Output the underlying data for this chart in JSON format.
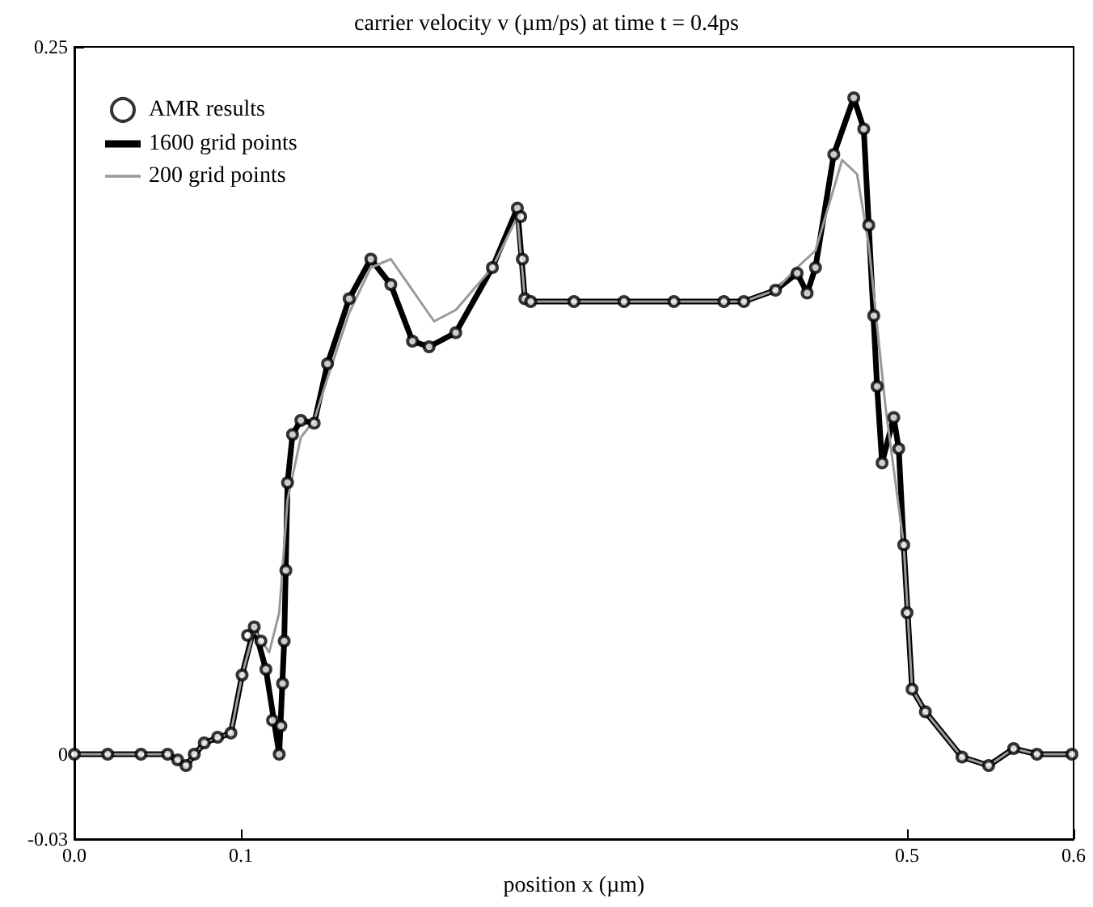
{
  "chart_data": {
    "type": "line",
    "title": "carrier velocity v (µm/ps) at time t = 0.4ps",
    "xlabel": "position x (µm)",
    "xlim": [
      0,
      0.6
    ],
    "xticks": [
      {
        "value": 0,
        "label": "0.0"
      },
      0.1,
      0.5,
      0.6
    ],
    "ylim": [
      -0.03,
      0.25
    ],
    "yticks": [
      -0.03,
      0,
      0.25
    ],
    "grid": false,
    "legend": "top left",
    "series": [
      {
        "name": "AMR results",
        "type": "scatter",
        "marker": "circle",
        "color": "#000000",
        "x": [
          0,
          0.02,
          0.04,
          0.056,
          0.062,
          0.067,
          0.072,
          0.078,
          0.086,
          0.094,
          0.1007,
          0.104,
          0.108,
          0.112,
          0.115,
          0.119,
          0.123,
          0.124,
          0.125,
          0.126,
          0.127,
          0.128,
          0.131,
          0.136,
          0.144,
          0.152,
          0.165,
          0.178,
          0.19,
          0.203,
          0.213,
          0.229,
          0.251,
          0.266,
          0.268,
          0.269,
          0.2705,
          0.274,
          0.3,
          0.33,
          0.36,
          0.39,
          0.402,
          0.421,
          0.434,
          0.44,
          0.445,
          0.456,
          0.468,
          0.474,
          0.477,
          0.48,
          0.482,
          0.485,
          0.492,
          0.495,
          0.498,
          0.5,
          0.503,
          0.511,
          0.533,
          0.549,
          0.564,
          0.578,
          0.599
        ],
        "values": [
          0,
          0,
          0,
          0,
          -0.002,
          -0.004,
          0,
          0.004,
          0.006,
          0.0075,
          0.028,
          0.042,
          0.045,
          0.04,
          0.03,
          0.012,
          0,
          0.01,
          0.025,
          0.04,
          0.065,
          0.096,
          0.113,
          0.118,
          0.117,
          0.138,
          0.161,
          0.175,
          0.166,
          0.146,
          0.144,
          0.149,
          0.172,
          0.193,
          0.19,
          0.175,
          0.161,
          0.16,
          0.16,
          0.16,
          0.16,
          0.16,
          0.16,
          0.164,
          0.17,
          0.163,
          0.172,
          0.212,
          0.232,
          0.221,
          0.187,
          0.155,
          0.13,
          0.103,
          0.119,
          0.108,
          0.074,
          0.05,
          0.023,
          0.015,
          -0.001,
          -0.004,
          0.002,
          0,
          0
        ]
      },
      {
        "name": "1600 grid points",
        "type": "line",
        "color": "#000000",
        "x": [
          0,
          0.056,
          0.067,
          0.078,
          0.094,
          0.1007,
          0.108,
          0.115,
          0.123,
          0.126,
          0.128,
          0.131,
          0.136,
          0.144,
          0.152,
          0.165,
          0.178,
          0.19,
          0.203,
          0.213,
          0.229,
          0.251,
          0.266,
          0.2705,
          0.274,
          0.402,
          0.421,
          0.434,
          0.44,
          0.445,
          0.456,
          0.468,
          0.474,
          0.477,
          0.482,
          0.485,
          0.492,
          0.495,
          0.498,
          0.503,
          0.511,
          0.533,
          0.549,
          0.564,
          0.578,
          0.599
        ],
        "values": [
          0,
          0,
          -0.004,
          0.004,
          0.0075,
          0.028,
          0.045,
          0.03,
          0,
          0.04,
          0.096,
          0.113,
          0.118,
          0.117,
          0.138,
          0.161,
          0.175,
          0.166,
          0.146,
          0.144,
          0.149,
          0.172,
          0.193,
          0.161,
          0.16,
          0.16,
          0.164,
          0.17,
          0.163,
          0.172,
          0.212,
          0.232,
          0.221,
          0.187,
          0.13,
          0.103,
          0.119,
          0.108,
          0.074,
          0.023,
          0.015,
          -0.001,
          -0.004,
          0.002,
          0,
          0
        ]
      },
      {
        "name": "200 grid points",
        "type": "line",
        "color": "#999999",
        "x": [
          0,
          0.056,
          0.067,
          0.078,
          0.094,
          0.1007,
          0.108,
          0.117,
          0.123,
          0.128,
          0.136,
          0.144,
          0.152,
          0.165,
          0.178,
          0.19,
          0.203,
          0.216,
          0.229,
          0.251,
          0.266,
          0.2705,
          0.274,
          0.402,
          0.421,
          0.434,
          0.445,
          0.461,
          0.47,
          0.477,
          0.487,
          0.498,
          0.503,
          0.511,
          0.533,
          0.549,
          0.564,
          0.578,
          0.599
        ],
        "values": [
          0,
          0,
          -0.004,
          0.004,
          0.0075,
          0.028,
          0.044,
          0.036,
          0.05,
          0.09,
          0.112,
          0.118,
          0.133,
          0.156,
          0.172,
          0.175,
          0.164,
          0.153,
          0.157,
          0.172,
          0.19,
          0.161,
          0.16,
          0.16,
          0.164,
          0.172,
          0.178,
          0.21,
          0.205,
          0.18,
          0.123,
          0.074,
          0.023,
          0.015,
          -0.001,
          -0.004,
          0.002,
          0,
          0
        ]
      }
    ]
  }
}
